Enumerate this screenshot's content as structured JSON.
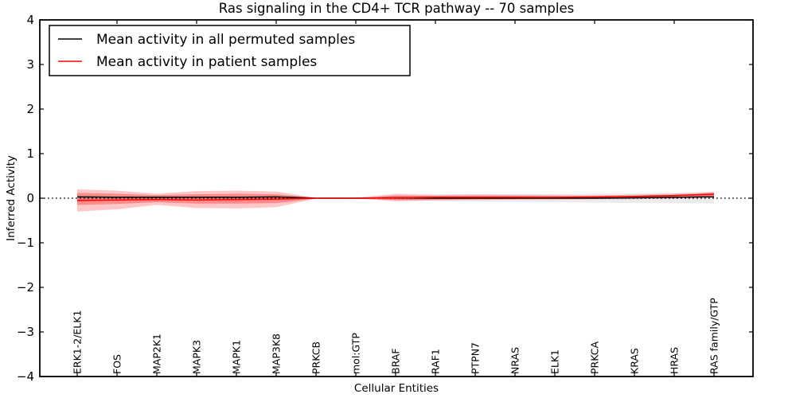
{
  "figure": {
    "title": "Ras signaling in the CD4+ TCR pathway -- 70 samples",
    "xlabel": "Cellular Entities",
    "ylabel": "Inferred Activity"
  },
  "legend": {
    "entries": [
      {
        "label": "Mean activity in all permuted samples",
        "color": "#000000"
      },
      {
        "label": "Mean activity in patient samples",
        "color": "#ff0000"
      }
    ]
  },
  "chart_data": {
    "type": "line",
    "title": "Ras signaling in the CD4+ TCR pathway -- 70 samples",
    "xlabel": "Cellular Entities",
    "ylabel": "Inferred Activity",
    "ylim": [
      -4,
      4
    ],
    "yticks": [
      4,
      3,
      2,
      1,
      0,
      -1,
      -2,
      -3,
      -4
    ],
    "ytick_labels": [
      "4",
      "3",
      "2",
      "1",
      "0",
      "−1",
      "−2",
      "−3",
      "−4"
    ],
    "grid": false,
    "legend_position": "upper left",
    "categories": [
      "ERK1-2/ELK1",
      "FOS",
      "MAP2K1",
      "MAPK3",
      "MAPK1",
      "MAP3K8",
      "PRKCB",
      "mol:GTP",
      "BRAF",
      "RAF1",
      "PTPN7",
      "NRAS",
      "ELK1",
      "PRKCA",
      "KRAS",
      "HRAS",
      "RAS family/GTP"
    ],
    "series": [
      {
        "name": "Mean activity in all permuted samples",
        "color": "#000000",
        "style": "solid",
        "values": [
          0.03,
          0.02,
          0.02,
          0.02,
          0.02,
          0.03,
          0.0,
          0.0,
          0.01,
          0.0,
          0.0,
          0.0,
          0.0,
          0.0,
          0.01,
          0.02,
          0.03
        ]
      },
      {
        "name": "Mean activity in patient samples",
        "color": "#ff0000",
        "style": "solid",
        "values": [
          -0.05,
          -0.04,
          -0.03,
          -0.04,
          -0.03,
          -0.02,
          0.0,
          0.0,
          0.01,
          0.02,
          0.02,
          0.02,
          0.02,
          0.03,
          0.04,
          0.06,
          0.09
        ]
      }
    ],
    "bands": [
      {
        "name": "permuted-std-band",
        "color": "#808080",
        "opacity": 0.16,
        "top": [
          0.06,
          0.05,
          0.04,
          0.05,
          0.05,
          0.05,
          0.01,
          0.01,
          0.05,
          0.06,
          0.07,
          0.08,
          0.09,
          0.1,
          0.11,
          0.12,
          0.14
        ],
        "bottom": [
          -0.08,
          -0.07,
          -0.05,
          -0.06,
          -0.06,
          -0.05,
          -0.01,
          -0.01,
          -0.05,
          -0.06,
          -0.07,
          -0.08,
          -0.09,
          -0.1,
          -0.11,
          -0.11,
          -0.12
        ]
      },
      {
        "name": "patient-std-band-outer",
        "color": "#ff0000",
        "opacity": 0.22,
        "top": [
          0.2,
          0.17,
          0.1,
          0.16,
          0.17,
          0.15,
          0.01,
          0.01,
          0.1,
          0.08,
          0.09,
          0.08,
          0.07,
          0.06,
          0.08,
          0.1,
          0.14
        ],
        "bottom": [
          -0.3,
          -0.25,
          -0.15,
          -0.22,
          -0.23,
          -0.2,
          -0.01,
          -0.01,
          -0.07,
          -0.05,
          -0.04,
          -0.03,
          -0.03,
          -0.02,
          -0.02,
          -0.01,
          0.02
        ]
      },
      {
        "name": "patient-std-band-inner",
        "color": "#ff0000",
        "opacity": 0.3,
        "top": [
          0.12,
          0.1,
          0.07,
          0.09,
          0.1,
          0.09,
          0.01,
          0.0,
          0.06,
          0.05,
          0.05,
          0.05,
          0.04,
          0.04,
          0.05,
          0.06,
          0.12
        ],
        "bottom": [
          -0.15,
          -0.13,
          -0.09,
          -0.12,
          -0.12,
          -0.11,
          -0.01,
          0.0,
          -0.04,
          -0.03,
          -0.02,
          -0.02,
          -0.01,
          -0.01,
          0.0,
          0.01,
          0.05
        ]
      }
    ],
    "zero_line": {
      "y": 0,
      "style": "dotted",
      "color": "#000000"
    }
  }
}
